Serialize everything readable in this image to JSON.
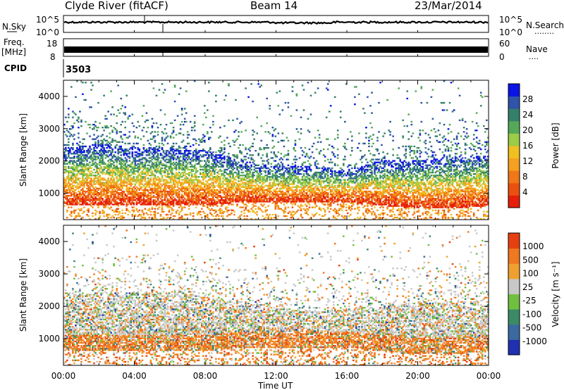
{
  "header": {
    "station": "Clyde River (fitACF)",
    "beam": "Beam 14",
    "date": "23/Mar/2014"
  },
  "panels": {
    "nsky": {
      "left_label": "N.Sky",
      "right_label": "N.Search",
      "left_ticks": [
        "10^5",
        "10^0"
      ],
      "right_ticks": [
        "10^5",
        "10^0"
      ],
      "right_dots": "........"
    },
    "freq": {
      "left_label_1": "Freq.",
      "left_label_2": "[MHz]",
      "right_label": "Nave",
      "left_ticks": [
        "18",
        "8"
      ],
      "right_ticks": [
        "60",
        "0"
      ],
      "right_dots": "...."
    },
    "cpid": {
      "label": "CPID",
      "value": "3503"
    }
  },
  "x_axis": {
    "label": "Time UT",
    "ticks": [
      "00:00",
      "04:00",
      "08:00",
      "12:00",
      "16:00",
      "20:00",
      "00:00"
    ]
  },
  "colorbars": {
    "power": {
      "title": "Power [dB]",
      "labels": [
        "28",
        "24",
        "20",
        "16",
        "12",
        "8",
        "4"
      ]
    },
    "velocity": {
      "title": "Velocity [m s⁻¹]",
      "labels": [
        "1000",
        "500",
        "100",
        "25",
        "-25",
        "-100",
        "-500",
        "-1000"
      ]
    }
  },
  "colors": {
    "power_scale": [
      "#0a14e6",
      "#2f54a8",
      "#35806a",
      "#55a858",
      "#9ccc48",
      "#f0c020",
      "#f5a020",
      "#f07818",
      "#ea5010",
      "#e61e0a"
    ],
    "velocity_scale": [
      "#2030b0",
      "#3a6aa0",
      "#3a8a68",
      "#70c040",
      "#c8c8c8",
      "#f0a030",
      "#f07820",
      "#e64010"
    ]
  },
  "chart_data": [
    {
      "type": "heatmap",
      "title": "",
      "xlabel": "Time UT",
      "ylabel": "Slant Range [km]",
      "ylabel_text": "Slant Range [km]",
      "x_ticks": [
        "00:00",
        "04:00",
        "08:00",
        "12:00",
        "16:00",
        "20:00",
        "00:00"
      ],
      "xlim_hours": [
        0,
        24
      ],
      "ylim": [
        180,
        4500
      ],
      "y_ticks": [
        1000,
        2000,
        3000,
        4000
      ],
      "colorbar": "Power [dB]",
      "series": [
        {
          "name": "Power [dB]",
          "t_hours": [
            0,
            2,
            4,
            6,
            8,
            10,
            12,
            14,
            16,
            18,
            20,
            22,
            24
          ],
          "dense_range_km": [
            [
              600,
              2400
            ],
            [
              600,
              2500
            ],
            [
              600,
              2400
            ],
            [
              600,
              2400
            ],
            [
              600,
              2300
            ],
            [
              700,
              2000
            ],
            [
              700,
              1800
            ],
            [
              700,
              1800
            ],
            [
              700,
              1700
            ],
            [
              600,
              2000
            ],
            [
              500,
              2000
            ],
            [
              500,
              2100
            ],
            [
              600,
              2200
            ]
          ]
        }
      ]
    },
    {
      "type": "heatmap",
      "title": "",
      "xlabel": "Time UT",
      "ylabel": "Slant Range [km]",
      "ylabel_text": "Slant Range [km]",
      "x_ticks": [
        "00:00",
        "04:00",
        "08:00",
        "12:00",
        "16:00",
        "20:00",
        "00:00"
      ],
      "xlim_hours": [
        0,
        24
      ],
      "ylim": [
        180,
        4500
      ],
      "y_ticks": [
        1000,
        2000,
        3000,
        4000
      ],
      "colorbar": "Velocity [m s⁻¹]",
      "series": [
        {
          "name": "Velocity [m s⁻¹]",
          "t_hours": [
            0,
            2,
            4,
            6,
            8,
            10,
            12,
            14,
            16,
            18,
            20,
            22,
            24
          ],
          "dense_range_km": [
            [
              600,
              2300
            ],
            [
              600,
              2400
            ],
            [
              600,
              2400
            ],
            [
              600,
              2400
            ],
            [
              600,
              2300
            ],
            [
              700,
              2100
            ],
            [
              700,
              2000
            ],
            [
              700,
              1800
            ],
            [
              700,
              1900
            ],
            [
              600,
              2000
            ],
            [
              500,
              2100
            ],
            [
              500,
              2100
            ],
            [
              600,
              2200
            ]
          ]
        }
      ]
    }
  ]
}
